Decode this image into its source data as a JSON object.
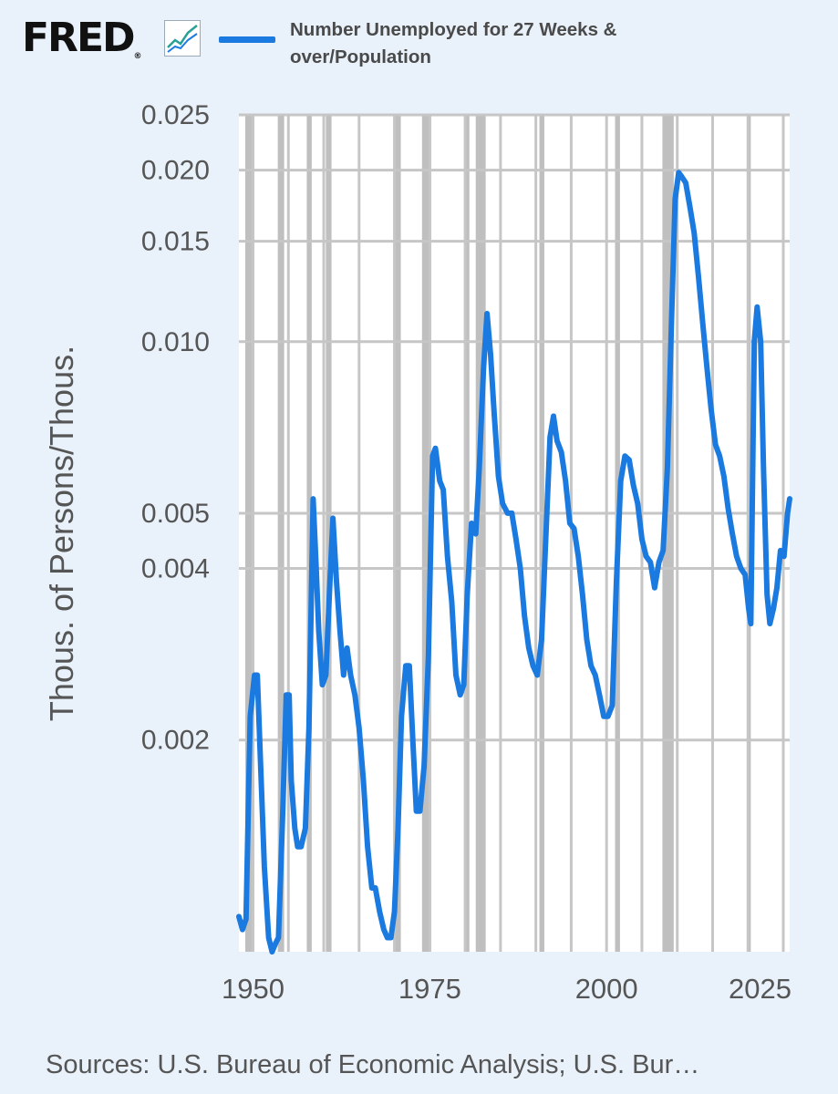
{
  "header": {
    "brand": "FRED",
    "logo_icon": "line-chart-icon",
    "legend_label": "Number Unemployed for 27 Weeks & over/Population"
  },
  "footer": {
    "source": "Sources: U.S. Bureau of Economic Analysis; U.S. Bur…"
  },
  "colors": {
    "background": "#e9f1fa",
    "series": "#1a7ae0",
    "recession": "#808080",
    "grid": "#c6c6c6",
    "axis_text": "#555555"
  },
  "chart_data": {
    "type": "line",
    "title": "",
    "xlabel": "",
    "ylabel": "Thous. of Persons/Thous.",
    "y_scale": "log",
    "ylim": [
      0.00085,
      0.025
    ],
    "xlim": [
      1948.0,
      2025.9
    ],
    "grid": true,
    "legend_position": "top",
    "x_ticks": [
      1950,
      1975,
      2000,
      2025
    ],
    "x_tick_labels": [
      "1950",
      "1975",
      "2000",
      "2025"
    ],
    "y_ticks": [
      0.002,
      0.004,
      0.005,
      0.01,
      0.015,
      0.02,
      0.025
    ],
    "y_tick_labels": [
      "0.002",
      "0.004",
      "0.005",
      "0.010",
      "0.015",
      "0.020",
      "0.025"
    ],
    "recessions": [
      [
        1948.9,
        1949.8
      ],
      [
        1953.5,
        1954.4
      ],
      [
        1957.6,
        1958.3
      ],
      [
        1960.3,
        1961.1
      ],
      [
        1969.9,
        1970.9
      ],
      [
        1973.9,
        1975.2
      ],
      [
        1980.0,
        1980.6
      ],
      [
        1981.5,
        1982.9
      ],
      [
        1990.5,
        1991.2
      ],
      [
        2001.2,
        2001.9
      ],
      [
        2007.9,
        2009.5
      ],
      [
        2020.1,
        2020.4
      ]
    ],
    "series": [
      {
        "name": "Number Unemployed for 27 Weeks & over/Population",
        "points": [
          [
            1948.0,
            0.00098
          ],
          [
            1948.5,
            0.00093
          ],
          [
            1949.0,
            0.00097
          ],
          [
            1949.6,
            0.0022
          ],
          [
            1950.2,
            0.0026
          ],
          [
            1950.6,
            0.0026
          ],
          [
            1951.0,
            0.0019
          ],
          [
            1951.6,
            0.0012
          ],
          [
            1952.2,
            0.0009
          ],
          [
            1952.7,
            0.00085
          ],
          [
            1953.2,
            0.00088
          ],
          [
            1953.6,
            0.0009
          ],
          [
            1954.2,
            0.0015
          ],
          [
            1954.7,
            0.0024
          ],
          [
            1955.1,
            0.0024
          ],
          [
            1955.4,
            0.0017
          ],
          [
            1955.9,
            0.0014
          ],
          [
            1956.3,
            0.0013
          ],
          [
            1956.8,
            0.0013
          ],
          [
            1957.4,
            0.0014
          ],
          [
            1957.9,
            0.0021
          ],
          [
            1958.5,
            0.0053
          ],
          [
            1958.9,
            0.0041
          ],
          [
            1959.3,
            0.0031
          ],
          [
            1959.8,
            0.0025
          ],
          [
            1960.3,
            0.0026
          ],
          [
            1960.8,
            0.0036
          ],
          [
            1961.3,
            0.0049
          ],
          [
            1961.8,
            0.0038
          ],
          [
            1962.3,
            0.0031
          ],
          [
            1962.8,
            0.0026
          ],
          [
            1963.3,
            0.0029
          ],
          [
            1963.8,
            0.0026
          ],
          [
            1964.4,
            0.0024
          ],
          [
            1965.0,
            0.0021
          ],
          [
            1965.6,
            0.0017
          ],
          [
            1966.2,
            0.0013
          ],
          [
            1966.8,
            0.0011
          ],
          [
            1967.3,
            0.0011
          ],
          [
            1967.9,
            0.001
          ],
          [
            1968.5,
            0.00093
          ],
          [
            1969.0,
            0.0009
          ],
          [
            1969.5,
            0.0009
          ],
          [
            1970.0,
            0.001
          ],
          [
            1970.5,
            0.0014
          ],
          [
            1971.0,
            0.0022
          ],
          [
            1971.6,
            0.0027
          ],
          [
            1972.1,
            0.0027
          ],
          [
            1972.6,
            0.002
          ],
          [
            1973.1,
            0.0015
          ],
          [
            1973.6,
            0.0015
          ],
          [
            1974.2,
            0.0018
          ],
          [
            1974.8,
            0.0028
          ],
          [
            1975.4,
            0.0063
          ],
          [
            1975.8,
            0.0065
          ],
          [
            1976.4,
            0.0057
          ],
          [
            1976.9,
            0.0055
          ],
          [
            1977.5,
            0.0042
          ],
          [
            1978.1,
            0.0035
          ],
          [
            1978.7,
            0.0026
          ],
          [
            1979.3,
            0.0024
          ],
          [
            1979.8,
            0.0025
          ],
          [
            1980.3,
            0.0036
          ],
          [
            1980.9,
            0.0048
          ],
          [
            1981.5,
            0.0046
          ],
          [
            1982.0,
            0.006
          ],
          [
            1982.6,
            0.009
          ],
          [
            1983.1,
            0.0112
          ],
          [
            1983.6,
            0.0095
          ],
          [
            1984.1,
            0.0075
          ],
          [
            1984.7,
            0.0058
          ],
          [
            1985.3,
            0.0052
          ],
          [
            1986.0,
            0.005
          ],
          [
            1986.6,
            0.005
          ],
          [
            1987.2,
            0.0045
          ],
          [
            1987.8,
            0.004
          ],
          [
            1988.4,
            0.0033
          ],
          [
            1989.0,
            0.0029
          ],
          [
            1989.6,
            0.0027
          ],
          [
            1990.2,
            0.0026
          ],
          [
            1990.8,
            0.003
          ],
          [
            1991.4,
            0.0045
          ],
          [
            1992.0,
            0.0068
          ],
          [
            1992.5,
            0.0074
          ],
          [
            1993.0,
            0.0067
          ],
          [
            1993.6,
            0.0064
          ],
          [
            1994.2,
            0.0057
          ],
          [
            1994.8,
            0.0048
          ],
          [
            1995.4,
            0.0047
          ],
          [
            1996.0,
            0.0042
          ],
          [
            1996.6,
            0.0036
          ],
          [
            1997.2,
            0.003
          ],
          [
            1997.8,
            0.0027
          ],
          [
            1998.4,
            0.0026
          ],
          [
            1999.0,
            0.0024
          ],
          [
            1999.6,
            0.0022
          ],
          [
            2000.2,
            0.0022
          ],
          [
            2000.8,
            0.0023
          ],
          [
            2001.4,
            0.0038
          ],
          [
            2002.0,
            0.0057
          ],
          [
            2002.6,
            0.0063
          ],
          [
            2003.2,
            0.0062
          ],
          [
            2003.8,
            0.0056
          ],
          [
            2004.4,
            0.0052
          ],
          [
            2005.0,
            0.0045
          ],
          [
            2005.6,
            0.0042
          ],
          [
            2006.2,
            0.0041
          ],
          [
            2006.8,
            0.0037
          ],
          [
            2007.4,
            0.0041
          ],
          [
            2008.0,
            0.0043
          ],
          [
            2008.6,
            0.006
          ],
          [
            2009.2,
            0.011
          ],
          [
            2009.7,
            0.0178
          ],
          [
            2010.2,
            0.0198
          ],
          [
            2010.6,
            0.0195
          ],
          [
            2011.2,
            0.019
          ],
          [
            2011.8,
            0.0172
          ],
          [
            2012.4,
            0.0155
          ],
          [
            2013.0,
            0.013
          ],
          [
            2013.6,
            0.0108
          ],
          [
            2014.2,
            0.009
          ],
          [
            2014.8,
            0.0076
          ],
          [
            2015.4,
            0.0066
          ],
          [
            2016.0,
            0.0063
          ],
          [
            2016.6,
            0.0058
          ],
          [
            2017.2,
            0.0051
          ],
          [
            2017.8,
            0.0046
          ],
          [
            2018.4,
            0.0042
          ],
          [
            2019.0,
            0.004
          ],
          [
            2019.6,
            0.0039
          ],
          [
            2020.1,
            0.0034
          ],
          [
            2020.4,
            0.0032
          ],
          [
            2020.9,
            0.01
          ],
          [
            2021.3,
            0.0115
          ],
          [
            2021.8,
            0.01
          ],
          [
            2022.2,
            0.006
          ],
          [
            2022.7,
            0.0036
          ],
          [
            2023.1,
            0.0032
          ],
          [
            2023.6,
            0.0034
          ],
          [
            2024.1,
            0.0037
          ],
          [
            2024.6,
            0.0043
          ],
          [
            2025.1,
            0.0042
          ],
          [
            2025.6,
            0.005
          ],
          [
            2025.9,
            0.0053
          ]
        ]
      }
    ]
  }
}
